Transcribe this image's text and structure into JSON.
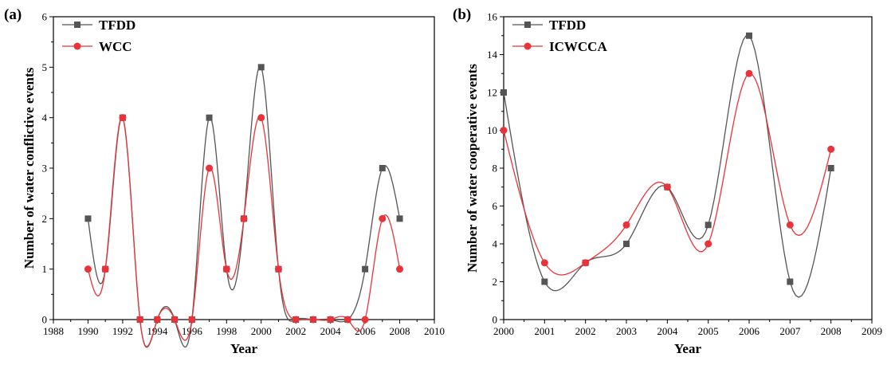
{
  "chart_data": [
    {
      "type": "line",
      "panel_label": "(a)",
      "xlabel": "Year",
      "ylabel": "Number of water conflictive events",
      "xlim": [
        1988,
        2010
      ],
      "ylim": [
        0,
        6
      ],
      "xticks": [
        1988,
        1990,
        1992,
        1994,
        1996,
        1998,
        2000,
        2002,
        2004,
        2006,
        2008,
        2010
      ],
      "yticks": [
        0,
        1,
        2,
        3,
        4,
        5,
        6
      ],
      "legend_position": "top-left",
      "grid": false,
      "series": [
        {
          "name": "TFDD",
          "color": "#555555",
          "marker": "square",
          "x": [
            1990,
            1991,
            1992,
            1993,
            1994,
            1995,
            1996,
            1997,
            1998,
            1999,
            2000,
            2001,
            2002,
            2003,
            2004,
            2005,
            2006,
            2007,
            2008
          ],
          "y": [
            2,
            1,
            4,
            0,
            0,
            0,
            0,
            4,
            1,
            2,
            5,
            1,
            0,
            0,
            0,
            0,
            1,
            3,
            2
          ]
        },
        {
          "name": "WCC",
          "color": "#e8333a",
          "marker": "circle",
          "x": [
            1990,
            1991,
            1992,
            1993,
            1994,
            1995,
            1996,
            1997,
            1998,
            1999,
            2000,
            2001,
            2002,
            2003,
            2004,
            2005,
            2006,
            2007,
            2008
          ],
          "y": [
            1,
            1,
            4,
            0,
            0,
            0,
            0,
            3,
            1,
            2,
            4,
            1,
            0,
            0,
            0,
            0,
            0,
            2,
            1
          ]
        }
      ]
    },
    {
      "type": "line",
      "panel_label": "(b)",
      "xlabel": "Year",
      "ylabel": "Number of water cooperative events",
      "xlim": [
        2000,
        2009
      ],
      "ylim": [
        0,
        16
      ],
      "xticks": [
        2000,
        2001,
        2002,
        2003,
        2004,
        2005,
        2006,
        2007,
        2008,
        2009
      ],
      "yticks": [
        0,
        2,
        4,
        6,
        8,
        10,
        12,
        14,
        16
      ],
      "legend_position": "top-left",
      "grid": false,
      "series": [
        {
          "name": "TFDD",
          "color": "#555555",
          "marker": "square",
          "x": [
            2000,
            2001,
            2002,
            2003,
            2004,
            2005,
            2006,
            2007,
            2008
          ],
          "y": [
            12,
            2,
            3,
            4,
            7,
            5,
            15,
            2,
            8
          ]
        },
        {
          "name": "ICWCCA",
          "color": "#e8333a",
          "marker": "circle",
          "x": [
            2000,
            2001,
            2002,
            2003,
            2004,
            2005,
            2006,
            2007,
            2008
          ],
          "y": [
            10,
            3,
            3,
            5,
            7,
            4,
            13,
            5,
            9
          ]
        }
      ]
    }
  ]
}
